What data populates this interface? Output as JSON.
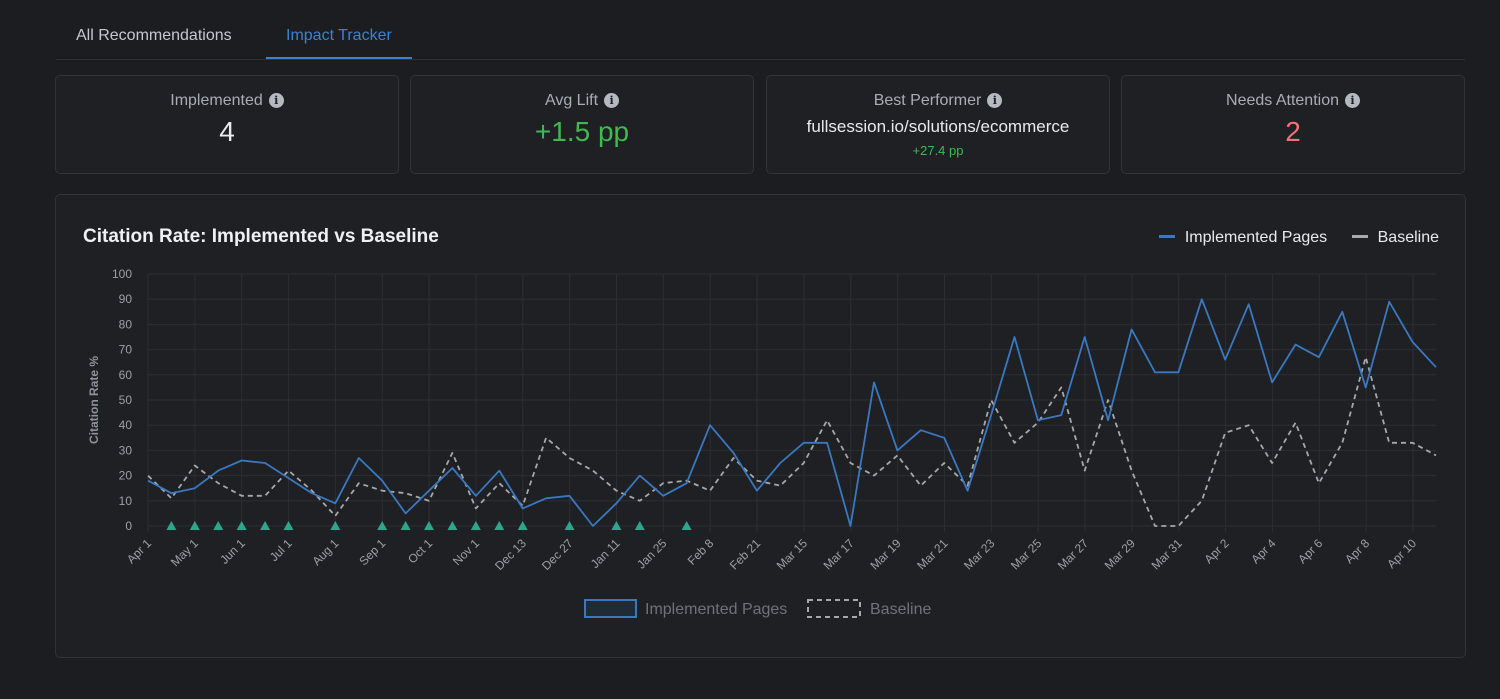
{
  "tabs": [
    {
      "label": "All Recommendations",
      "active": false
    },
    {
      "label": "Impact Tracker",
      "active": true
    }
  ],
  "cards": {
    "implemented": {
      "label": "Implemented",
      "value": "4",
      "icon": "info-icon"
    },
    "avg_lift": {
      "label": "Avg Lift",
      "value": "+1.5 pp",
      "icon": "info-icon"
    },
    "best_performer": {
      "label": "Best Performer",
      "value": "fullsession.io/solutions/ecommerce",
      "sub": "+27.4 pp",
      "icon": "info-icon"
    },
    "needs_attention": {
      "label": "Needs Attention",
      "value": "2",
      "icon": "info-icon"
    }
  },
  "colors": {
    "accent": "#3b82d6",
    "implemented_line": "#3a78c0",
    "baseline_line": "#a8a8a8",
    "positive": "#3fb950",
    "negative": "#f07178",
    "marker": "#2fa58c"
  },
  "chart_data": {
    "type": "line",
    "title": "Citation Rate: Implemented vs Baseline",
    "ylabel": "Citation Rate %",
    "xlabel": "",
    "ylim": [
      0,
      100
    ],
    "yticks": [
      0,
      10,
      20,
      30,
      40,
      50,
      60,
      70,
      80,
      90,
      100
    ],
    "grid": true,
    "legend_top": [
      "Implemented Pages",
      "Baseline"
    ],
    "legend_bottom": [
      "Implemented Pages",
      "Baseline"
    ],
    "x_tick_labels": [
      "Apr 1",
      "May 1",
      "Jun 1",
      "Jul 1",
      "Aug 1",
      "Sep 1",
      "Oct 1",
      "Nov 1",
      "Dec 13",
      "Dec 27",
      "Jan 11",
      "Jan 25",
      "Feb 8",
      "Feb 21",
      "Mar 15",
      "Mar 17",
      "Mar 19",
      "Mar 21",
      "Mar 23",
      "Mar 25",
      "Mar 27",
      "Mar 29",
      "Mar 31",
      "Apr 2",
      "Apr 4",
      "Apr 6",
      "Apr 8",
      "Apr 10"
    ],
    "series": [
      {
        "name": "Implemented Pages",
        "style": "solid",
        "values": [
          18,
          13,
          15,
          22,
          26,
          25,
          19,
          13,
          9,
          27,
          18,
          5,
          14,
          23,
          12,
          22,
          7,
          11,
          12,
          0,
          9,
          20,
          12,
          17,
          40,
          29,
          14,
          25,
          33,
          33,
          0,
          57,
          30,
          38,
          35,
          14,
          44,
          75,
          42,
          44,
          75,
          42,
          78,
          61,
          61,
          90,
          66,
          88,
          57,
          72,
          67,
          85,
          55,
          89,
          73,
          63
        ]
      },
      {
        "name": "Baseline",
        "style": "dashed",
        "values": [
          20,
          11,
          24,
          17,
          12,
          12,
          22,
          14,
          4,
          17,
          14,
          13,
          10,
          29,
          7,
          17,
          8,
          35,
          27,
          22,
          14,
          10,
          17,
          18,
          14,
          27,
          18,
          16,
          25,
          42,
          25,
          20,
          28,
          16,
          25,
          16,
          50,
          33,
          41,
          55,
          22,
          50,
          22,
          0,
          0,
          10,
          37,
          40,
          25,
          41,
          17,
          33,
          67,
          33,
          33,
          28
        ]
      }
    ],
    "implementation_markers_at_indices": [
      1,
      2,
      3,
      4,
      5,
      6,
      8,
      10,
      11,
      12,
      13,
      14,
      15,
      16,
      18,
      20,
      21,
      23
    ]
  }
}
